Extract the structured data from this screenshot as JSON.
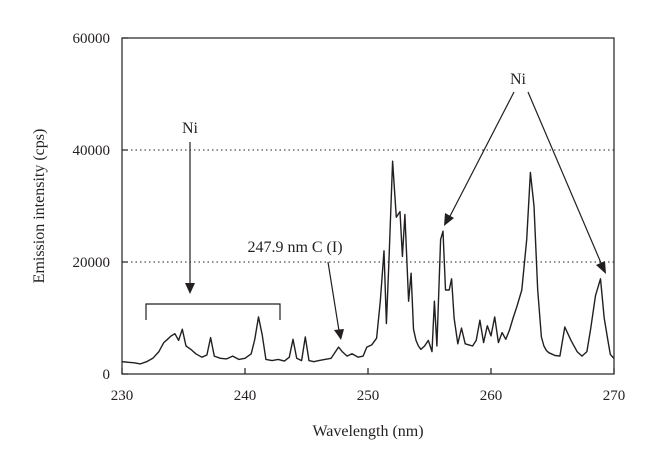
{
  "chart_data": {
    "type": "line",
    "xlabel": "Wavelength (nm)",
    "ylabel": "Emission intensity (cps)",
    "xlim": [
      230,
      270
    ],
    "ylim": [
      0,
      60000
    ],
    "x_ticks": [
      230,
      240,
      250,
      260,
      270
    ],
    "y_ticks": [
      0,
      20000,
      40000,
      60000
    ],
    "x_tick_labels": [
      "230",
      "240",
      "250",
      "260",
      "270"
    ],
    "y_tick_labels": [
      "0",
      "20000",
      "40000",
      "60000"
    ],
    "grid": "horizontal dotted lines at 20000 and 40000",
    "line_color": "#231f20",
    "series": [
      {
        "x": [
          230.0,
          231.0,
          231.5,
          232.0,
          232.5,
          233.0,
          233.4,
          233.7,
          234.0,
          234.3,
          234.6,
          234.9,
          235.2,
          235.6,
          236.0,
          236.5,
          236.9,
          237.2,
          237.5,
          238.0,
          238.5,
          239.0,
          239.5,
          240.0,
          240.5,
          240.8,
          241.1,
          241.4,
          241.7,
          242.2,
          242.7,
          243.2,
          243.6,
          243.9,
          244.2,
          244.6,
          244.9,
          245.2,
          245.6,
          246.0,
          246.5,
          247.0,
          247.3,
          247.6,
          247.9,
          248.3,
          248.7,
          249.2,
          249.6,
          249.9,
          250.3,
          250.7,
          251.0,
          251.3,
          251.5,
          251.7,
          252.0,
          252.3,
          252.6,
          252.8,
          253.0,
          253.3,
          253.5,
          253.7,
          253.9,
          254.1,
          254.3,
          254.6,
          254.9,
          255.2,
          255.4,
          255.6,
          255.9,
          256.1,
          256.3,
          256.6,
          256.8,
          257.0,
          257.3,
          257.6,
          257.9,
          258.2,
          258.5,
          258.8,
          259.1,
          259.4,
          259.7,
          260.0,
          260.3,
          260.6,
          260.9,
          261.2,
          261.5,
          261.8,
          262.1,
          262.5,
          262.9,
          263.2,
          263.5,
          263.8,
          264.1,
          264.3,
          264.5,
          264.7,
          264.9,
          265.2,
          265.6,
          266.0,
          266.5,
          267.0,
          267.4,
          267.8,
          268.1,
          268.5,
          268.9,
          269.2,
          269.5,
          269.7,
          269.9,
          270.0
        ],
        "y": [
          2200,
          2000,
          1800,
          2200,
          2800,
          4000,
          5600,
          6200,
          6800,
          7200,
          6000,
          8000,
          5000,
          4400,
          3600,
          3000,
          3400,
          6500,
          3200,
          2800,
          2700,
          3200,
          2600,
          2800,
          3600,
          6200,
          10200,
          7000,
          2600,
          2400,
          2600,
          2300,
          3000,
          6200,
          2800,
          2400,
          6600,
          2400,
          2200,
          2400,
          2600,
          2800,
          3800,
          4800,
          4000,
          3200,
          3600,
          3000,
          3200,
          4800,
          5200,
          6400,
          13000,
          22000,
          9000,
          20000,
          38000,
          28000,
          29000,
          21000,
          28500,
          13000,
          18000,
          8000,
          6000,
          5000,
          4400,
          5000,
          6000,
          4000,
          13000,
          5000,
          24000,
          25500,
          15000,
          15000,
          17000,
          10000,
          5400,
          8200,
          5400,
          5200,
          5000,
          6000,
          9600,
          5600,
          8600,
          6800,
          10200,
          5600,
          7400,
          6200,
          7800,
          10000,
          12000,
          15000,
          24000,
          36000,
          30000,
          15000,
          6600,
          5000,
          4200,
          3800,
          3600,
          3300,
          3200,
          8400,
          6000,
          4000,
          3200,
          4000,
          8000,
          14000,
          17000,
          10000,
          6000,
          3500,
          3000,
          2800
        ]
      }
    ],
    "annotations": {
      "ni_left": "Ni",
      "ni_right": "Ni",
      "carbon_line": "247.9 nm C (I)"
    }
  }
}
